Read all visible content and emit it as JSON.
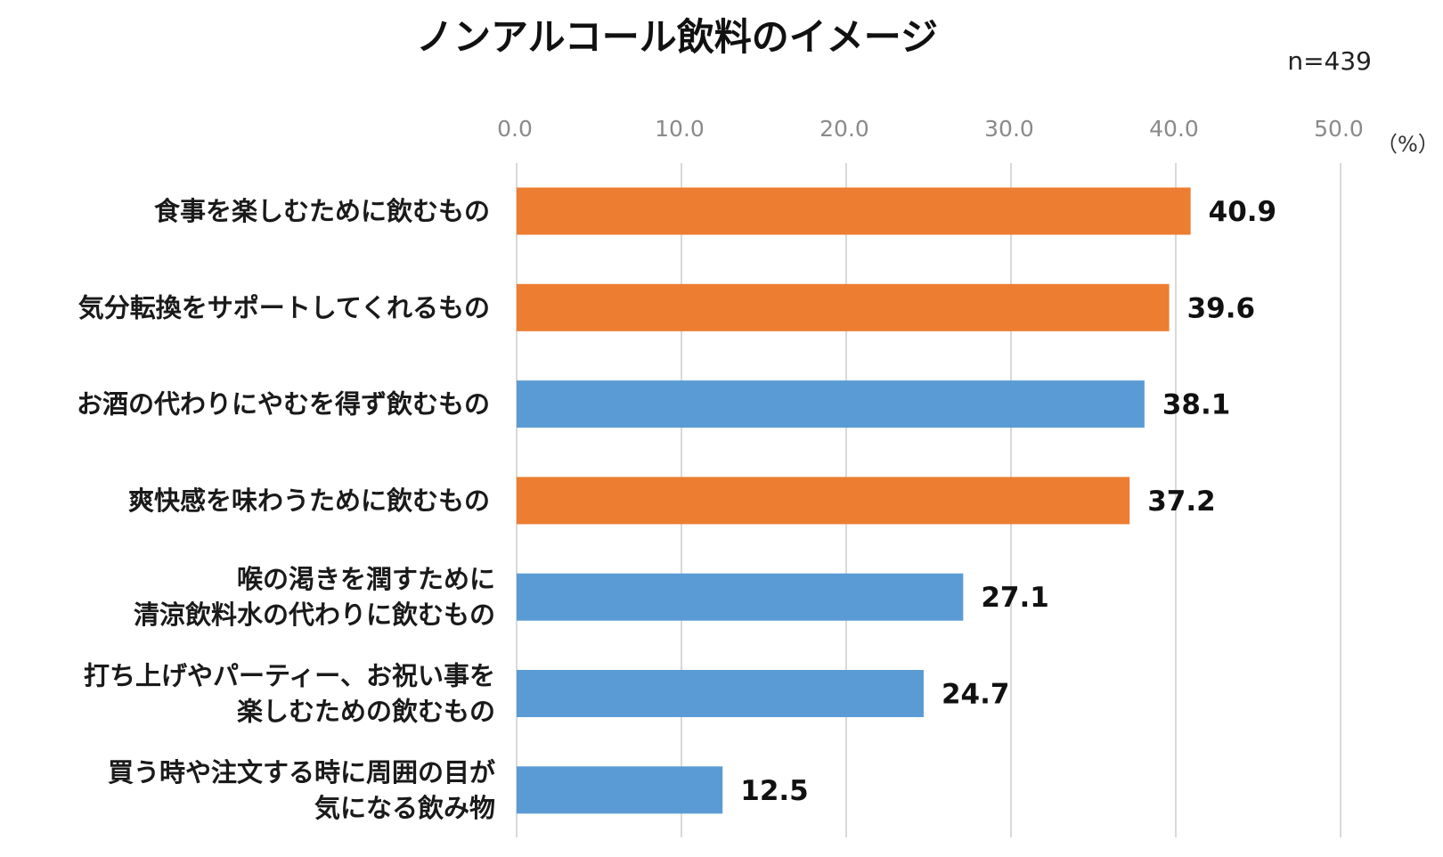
{
  "chart_data": {
    "type": "bar",
    "orientation": "horizontal",
    "title": "ノンアルコール飲料のイメージ",
    "sample_size": "n=439",
    "unit": "（%）",
    "xlim": [
      0,
      50
    ],
    "x_ticks": [
      "0.0",
      "10.0",
      "20.0",
      "30.0",
      "40.0",
      "50.0"
    ],
    "grid": true,
    "categories": [
      [
        "食事を楽しむために飲むもの"
      ],
      [
        "気分転換をサポートしてくれるもの"
      ],
      [
        "お酒の代わりにやむを得ず飲むもの"
      ],
      [
        "爽快感を味わうために飲むもの"
      ],
      [
        "喉の渇きを潤すために",
        "清涼飲料水の代わりに飲むもの"
      ],
      [
        "打ち上げやパーティー、お祝い事を",
        "楽しむための飲むもの"
      ],
      [
        "買う時や注文する時に周囲の目が",
        "気になる飲み物"
      ]
    ],
    "values": [
      40.9,
      39.6,
      38.1,
      37.2,
      27.1,
      24.7,
      12.5
    ],
    "value_labels": [
      "40.9",
      "39.6",
      "38.1",
      "37.2",
      "27.1",
      "24.7",
      "12.5"
    ],
    "bar_colors": [
      "#ED7D31",
      "#ED7D31",
      "#5B9BD5",
      "#ED7D31",
      "#5B9BD5",
      "#5B9BD5",
      "#5B9BD5"
    ]
  }
}
